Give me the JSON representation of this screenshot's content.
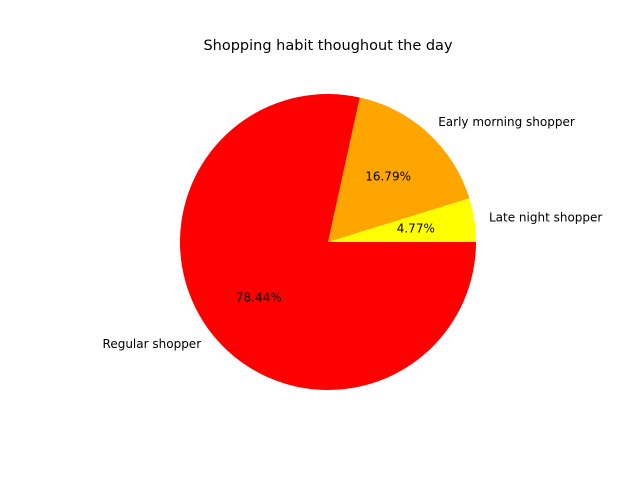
{
  "chart_data": {
    "type": "pie",
    "title": "Shopping habit thoughout the day",
    "slices": [
      {
        "label": "Late night shopper",
        "value": 4.77,
        "pct_label": "4.77%",
        "color": "#ffff00"
      },
      {
        "label": "Early morning shopper",
        "value": 16.79,
        "pct_label": "16.79%",
        "color": "#ffa500"
      },
      {
        "label": "Regular shopper",
        "value": 78.44,
        "pct_label": "78.44%",
        "color": "#ff0000"
      }
    ],
    "start_angle_deg": 0,
    "direction": "counterclockwise",
    "legend": "none"
  }
}
